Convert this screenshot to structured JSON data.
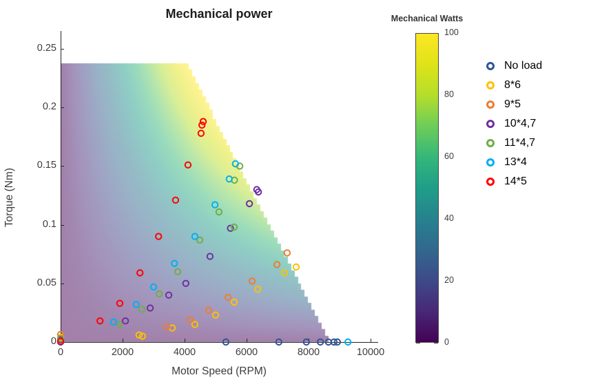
{
  "title": "Mechanical power",
  "axes": {
    "xlabel": "Motor Speed (RPM)",
    "ylabel": "Torque (Nm)",
    "x_ticks": [
      {
        "value": 0,
        "label": "0"
      },
      {
        "value": 2000,
        "label": "2000"
      },
      {
        "value": 4000,
        "label": "4000"
      },
      {
        "value": 6000,
        "label": "6000"
      },
      {
        "value": 8000,
        "label": "8000"
      },
      {
        "value": 10000,
        "label": "10000"
      }
    ],
    "y_ticks": [
      {
        "value": 0,
        "label": "0"
      },
      {
        "value": 0.05,
        "label": "0.05"
      },
      {
        "value": 0.1,
        "label": "0.1"
      },
      {
        "value": 0.15,
        "label": "0.15"
      },
      {
        "value": 0.2,
        "label": "0.2"
      },
      {
        "value": 0.25,
        "label": "0.25"
      }
    ],
    "xlim": [
      0,
      10400
    ],
    "ylim": [
      0,
      0.265
    ],
    "grid": false
  },
  "colorbar": {
    "title": "Mechanical Watts",
    "min": 0,
    "max": 100,
    "ticks": [
      {
        "value": 0,
        "label": "0"
      },
      {
        "value": 20,
        "label": "20"
      },
      {
        "value": 40,
        "label": "40"
      },
      {
        "value": 60,
        "label": "60"
      },
      {
        "value": 80,
        "label": "80"
      },
      {
        "value": 100,
        "label": "100"
      }
    ],
    "colormap": "viridis"
  },
  "legend": {
    "position": "right-outside",
    "entries": [
      {
        "label": "No load",
        "color": "#2F5597"
      },
      {
        "label": "8*6",
        "color": "#FFC000"
      },
      {
        "label": "9*5",
        "color": "#ED7D31"
      },
      {
        "label": "10*4,7",
        "color": "#7030A0"
      },
      {
        "label": "11*4,7",
        "color": "#70AD47"
      },
      {
        "label": "13*4",
        "color": "#00B0F0"
      },
      {
        "label": "14*5",
        "color": "#FF0000"
      }
    ]
  },
  "chart_data": {
    "type": "scatter",
    "x_units": "RPM",
    "y_units": "Nm",
    "background_surface": {
      "quantity": "mechanical power (W) = torque * angular speed",
      "colormap": "viridis",
      "alpha_over_white": 0.5,
      "power_range_watts": [
        0,
        100
      ],
      "torque_limit_nm": 0.238,
      "corner_rpm": 4044,
      "zero_torque_rpm": 8711
    },
    "series": [
      {
        "name": "No load",
        "color": "#2F5597",
        "points": [
          [
            0,
            0
          ],
          [
            5330,
            0
          ],
          [
            7040,
            0
          ],
          [
            7930,
            0
          ],
          [
            8380,
            0
          ],
          [
            8640,
            0
          ],
          [
            8820,
            0
          ],
          [
            8930,
            0
          ]
        ]
      },
      {
        "name": "8*6",
        "color": "#FFC000",
        "points": [
          [
            0,
            0.004
          ],
          [
            2530,
            0.006
          ],
          [
            2640,
            0.005
          ],
          [
            3600,
            0.012
          ],
          [
            4330,
            0.015
          ],
          [
            5000,
            0.023
          ],
          [
            5600,
            0.034
          ],
          [
            6360,
            0.045
          ],
          [
            7220,
            0.059
          ],
          [
            7600,
            0.064
          ]
        ]
      },
      {
        "name": "9*5",
        "color": "#ED7D31",
        "points": [
          [
            0,
            0.0065
          ],
          [
            3420,
            0.013
          ],
          [
            4180,
            0.019
          ],
          [
            4780,
            0.027
          ],
          [
            5400,
            0.038
          ],
          [
            6180,
            0.052
          ],
          [
            6980,
            0.066
          ],
          [
            7310,
            0.076
          ]
        ]
      },
      {
        "name": "10*4,7",
        "color": "#7030A0",
        "points": [
          [
            0,
            0.002
          ],
          [
            2090,
            0.018
          ],
          [
            2890,
            0.029
          ],
          [
            3490,
            0.04
          ],
          [
            4040,
            0.05
          ],
          [
            4820,
            0.073
          ],
          [
            5480,
            0.097
          ],
          [
            6090,
            0.118
          ],
          [
            6330,
            0.13
          ],
          [
            6380,
            0.128
          ]
        ]
      },
      {
        "name": "11*4,7",
        "color": "#70AD47",
        "points": [
          [
            0,
            0.003
          ],
          [
            1890,
            0.015
          ],
          [
            2620,
            0.028
          ],
          [
            3180,
            0.041
          ],
          [
            3780,
            0.06
          ],
          [
            4490,
            0.087
          ],
          [
            5110,
            0.111
          ],
          [
            5600,
            0.098
          ],
          [
            5610,
            0.138
          ],
          [
            5780,
            0.15
          ]
        ]
      },
      {
        "name": "13*4",
        "color": "#00B0F0",
        "points": [
          [
            1710,
            0.017
          ],
          [
            2440,
            0.032
          ],
          [
            3000,
            0.047
          ],
          [
            3670,
            0.067
          ],
          [
            4330,
            0.09
          ],
          [
            4980,
            0.117
          ],
          [
            5440,
            0.139
          ],
          [
            5640,
            0.152
          ],
          [
            9270,
            0
          ]
        ]
      },
      {
        "name": "14*5",
        "color": "#FF0000",
        "points": [
          [
            0,
            0.0005
          ],
          [
            1270,
            0.018
          ],
          [
            1910,
            0.033
          ],
          [
            2560,
            0.059
          ],
          [
            3160,
            0.09
          ],
          [
            3710,
            0.121
          ],
          [
            4110,
            0.151
          ],
          [
            4530,
            0.178
          ],
          [
            4560,
            0.185
          ],
          [
            4600,
            0.188
          ]
        ]
      }
    ]
  }
}
